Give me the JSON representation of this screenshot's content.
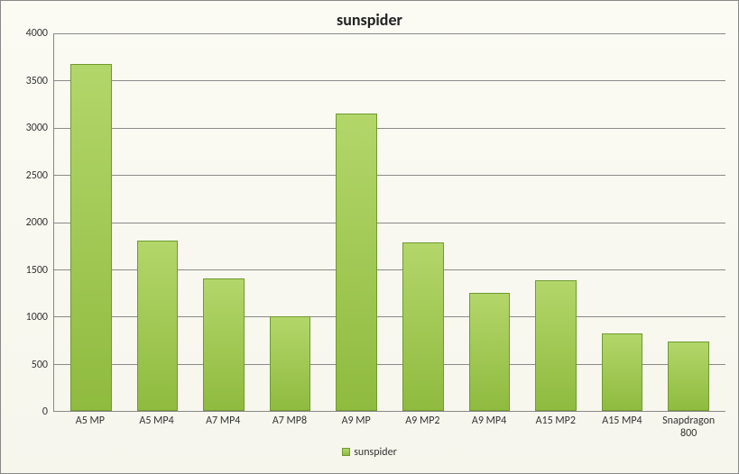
{
  "chart": {
    "type": "bar",
    "title": "sunspider",
    "title_fontsize": 18,
    "series_name": "sunspider",
    "categories": [
      "A5 MP",
      "A5 MP4",
      "A7 MP4",
      "A7 MP8",
      "A9 MP",
      "A9 MP2",
      "A9 MP4",
      "A15 MP2",
      "A15 MP4",
      "Snapdragon 800"
    ],
    "values": [
      3680,
      1800,
      1400,
      1000,
      3150,
      1790,
      1250,
      1380,
      820,
      740
    ],
    "ylim": [
      0,
      4000
    ],
    "ytick_step": 500,
    "yticks": [
      0,
      500,
      1000,
      1500,
      2000,
      2500,
      3000,
      3500,
      4000
    ],
    "bar_fill_top": "#b3d66a",
    "bar_fill_bottom": "#8fbb3f",
    "bar_border": "#6f9a2f",
    "grid_color": "#8a8a8a",
    "axis_color": "#888888",
    "background_top": "#fbfbf4",
    "background_bottom": "#f6f6ed",
    "text_color": "#333333",
    "label_fontsize": 12,
    "bar_width": 0.62,
    "legend_position": "bottom"
  }
}
